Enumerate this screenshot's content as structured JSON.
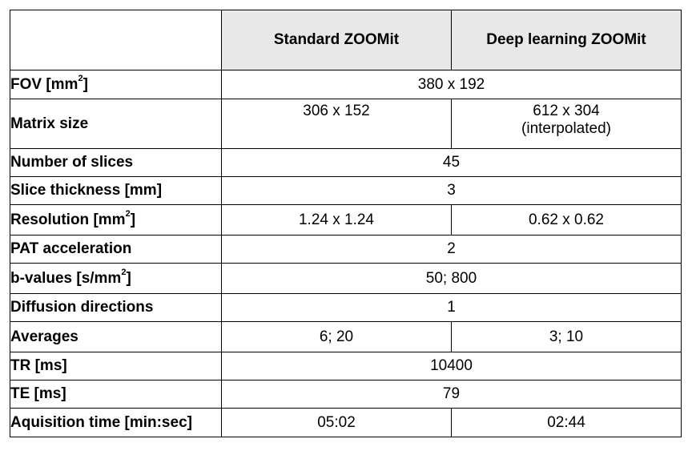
{
  "table": {
    "header": {
      "col1": "Standard ZOOMit",
      "col2": "Deep learning ZOOMit"
    },
    "rows": [
      {
        "label": "FOV [mm",
        "label_sup": "2",
        "label_tail": "]",
        "merged": "380 x 192"
      },
      {
        "label": "Matrix size",
        "col1": "306 x 152",
        "col2": "612 x 304",
        "col2_line2": "(interpolated)"
      },
      {
        "label": "Number of slices",
        "merged": "45"
      },
      {
        "label": "Slice thickness [mm]",
        "merged": "3"
      },
      {
        "label": "Resolution [mm",
        "label_sup": "2",
        "label_tail": "]",
        "col1": "1.24 x 1.24",
        "col2": "0.62 x 0.62"
      },
      {
        "label": "PAT acceleration",
        "merged": "2"
      },
      {
        "label": "b-values [s/mm",
        "label_sup": "2",
        "label_tail": "]",
        "merged": "50; 800"
      },
      {
        "label": "Diffusion directions",
        "merged": "1"
      },
      {
        "label": "Averages",
        "col1": "6; 20",
        "col2": "3; 10"
      },
      {
        "label": "TR [ms]",
        "merged": "10400"
      },
      {
        "label": "TE [ms]",
        "merged": "79"
      },
      {
        "label": "Aquisition time [min:sec]",
        "col1": "05:02",
        "col2": "02:44"
      }
    ]
  }
}
